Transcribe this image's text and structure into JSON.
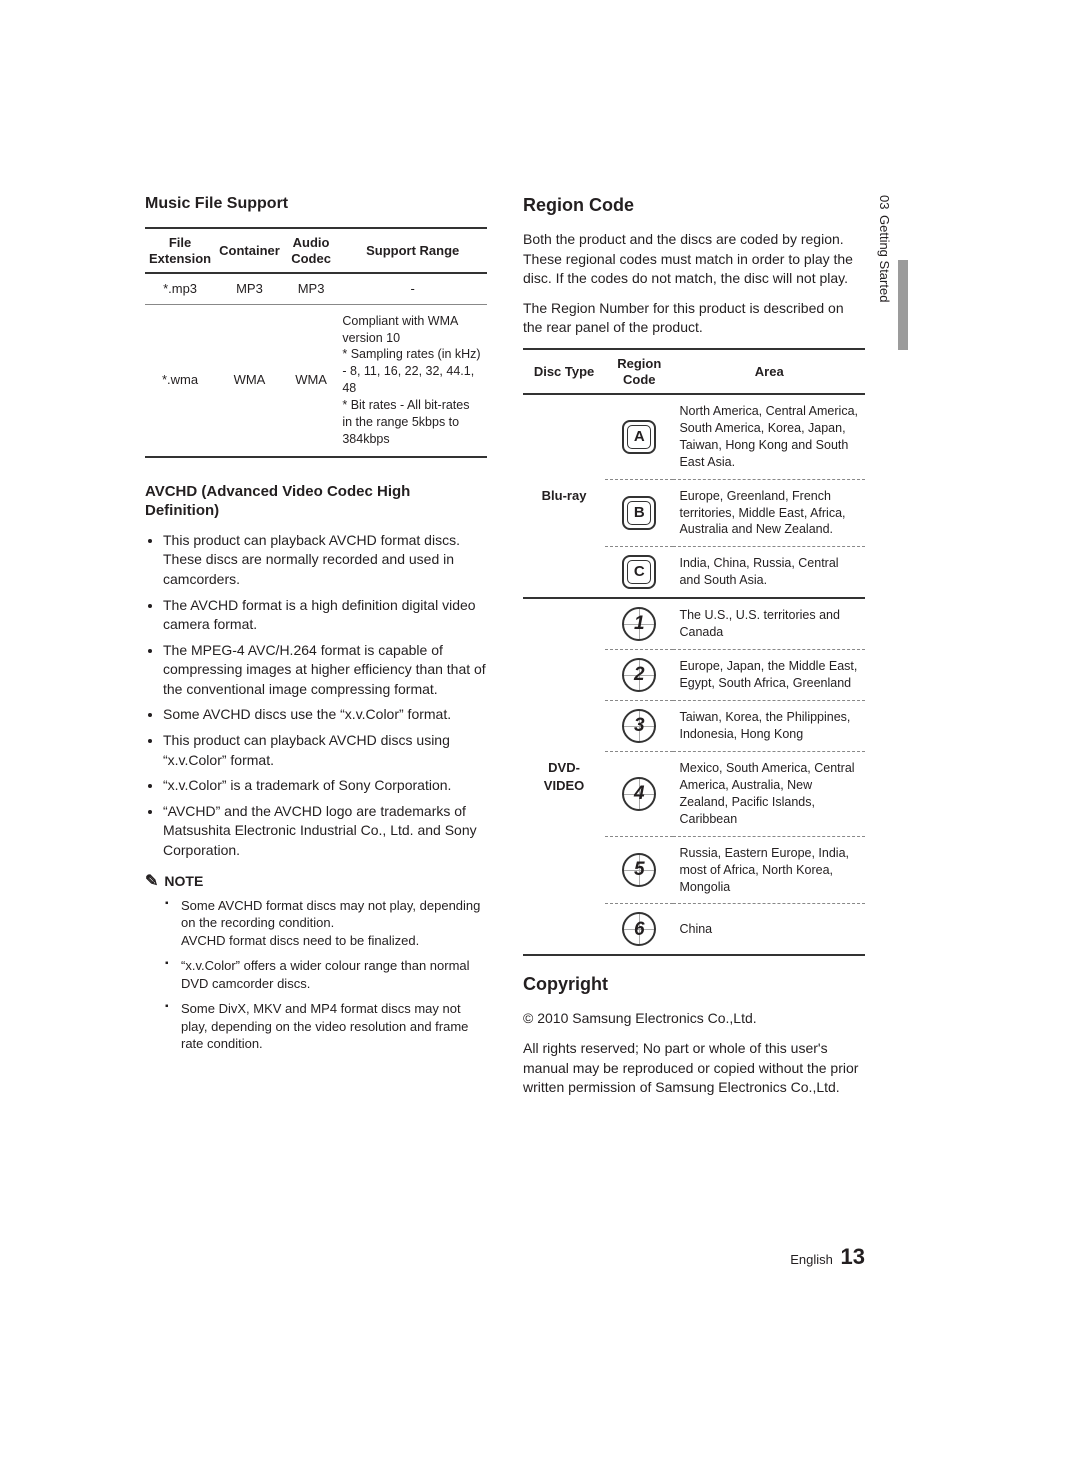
{
  "side_tab": {
    "chapter_num": "03",
    "chapter_title": "Getting Started"
  },
  "footer": {
    "lang": "English",
    "page_num": "13"
  },
  "left": {
    "music_title": "Music File Support",
    "music_table": {
      "headers": [
        "File\nExtension",
        "Container",
        "Audio\nCodec",
        "Support Range"
      ],
      "rows": [
        {
          "ext": "*.mp3",
          "container": "MP3",
          "codec": "MP3",
          "support": "-"
        },
        {
          "ext": "*.wma",
          "container": "WMA",
          "codec": "WMA",
          "support": "Compliant with WMA version 10\n* Sampling rates (in kHz) - 8, 11, 16, 22, 32, 44.1, 48\n* Bit rates - All bit-rates in the range 5kbps to 384kbps"
        }
      ]
    },
    "avchd_title": "AVCHD (Advanced Video Codec High Definition)",
    "avchd_bullets": [
      "This product can playback AVCHD format discs. These discs are normally recorded and used in camcorders.",
      "The AVCHD format is a high definition digital video camera format.",
      "The MPEG-4 AVC/H.264 format is capable of compressing images at higher efficiency than that of the conventional image compressing format.",
      "Some AVCHD discs use the “x.v.Color” format.",
      "This product can playback AVCHD discs using “x.v.Color” format.",
      "“x.v.Color” is a trademark of Sony Corporation.",
      "“AVCHD” and the AVCHD logo are trademarks of Matsushita Electronic Industrial Co., Ltd. and Sony Corporation."
    ],
    "note_label": "NOTE",
    "note_icon": "✎",
    "notes": [
      "Some AVCHD format discs may not play, depending on the recording condition.\nAVCHD format discs need to be finalized.",
      "“x.v.Color” offers a wider colour range than normal DVD camcorder discs.",
      "Some DivX, MKV and MP4 format discs may not play, depending on the video resolution and frame rate condition."
    ]
  },
  "right": {
    "region_title": "Region Code",
    "region_intro1": "Both the product and the discs are coded by region. These regional codes must match in order to play the disc. If the codes do not match, the disc will not play.",
    "region_intro2": "The Region Number for this product is described on the rear panel of the product.",
    "region_table": {
      "headers": [
        "Disc Type",
        "Region\nCode",
        "Area"
      ],
      "blu_label": "Blu-ray",
      "dvd_label": "DVD-VIDEO",
      "blu_rows": [
        {
          "code": "A",
          "area": "North America, Central America, South America, Korea, Japan, Taiwan, Hong Kong and South East Asia."
        },
        {
          "code": "B",
          "area": "Europe, Greenland, French territories, Middle East, Africa, Australia and New Zealand."
        },
        {
          "code": "C",
          "area": "India, China, Russia, Central and South Asia."
        }
      ],
      "dvd_rows": [
        {
          "code": "1",
          "area": "The U.S., U.S. territories and Canada"
        },
        {
          "code": "2",
          "area": "Europe, Japan, the Middle East, Egypt, South Africa, Greenland"
        },
        {
          "code": "3",
          "area": "Taiwan, Korea, the Philippines, Indonesia, Hong Kong"
        },
        {
          "code": "4",
          "area": "Mexico, South America, Central America, Australia, New Zealand, Pacific Islands, Caribbean"
        },
        {
          "code": "5",
          "area": "Russia, Eastern Europe, India, most of Africa, North Korea, Mongolia"
        },
        {
          "code": "6",
          "area": "China"
        }
      ]
    },
    "copyright_title": "Copyright",
    "copyright_line1": "© 2010 Samsung Electronics Co.,Ltd.",
    "copyright_line2": "All rights reserved; No part or whole of this user's manual may be reproduced or copied without the prior written permission of Samsung Electronics Co.,Ltd."
  }
}
